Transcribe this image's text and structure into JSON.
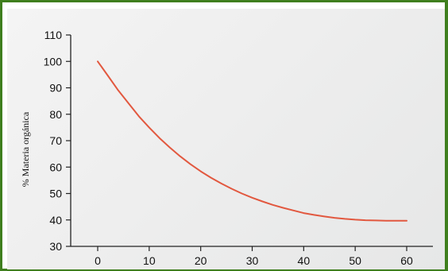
{
  "chart_data": {
    "type": "line",
    "title": "",
    "xlabel": "",
    "ylabel": "% Materia orgánica",
    "xlim": [
      0,
      60
    ],
    "ylim": [
      30,
      110
    ],
    "x_ticks": [
      0,
      10,
      20,
      30,
      40,
      50,
      60
    ],
    "y_ticks": [
      30,
      40,
      50,
      60,
      70,
      80,
      90,
      100,
      110
    ],
    "grid": false,
    "legend": "none",
    "series": [
      {
        "color": "#e2583f",
        "x": [
          0,
          2,
          4,
          6,
          8,
          10,
          12,
          14,
          16,
          18,
          20,
          22,
          24,
          26,
          28,
          30,
          32,
          34,
          36,
          38,
          40,
          42,
          44,
          46,
          48,
          50,
          52,
          54,
          56,
          58,
          60
        ],
        "y": [
          100,
          94.5,
          89.0,
          84.1,
          79.2,
          75.0,
          71.0,
          67.4,
          64.1,
          61.1,
          58.4,
          56.0,
          53.8,
          51.8,
          50.0,
          48.4,
          47.0,
          45.7,
          44.6,
          43.6,
          42.6,
          41.9,
          41.3,
          40.8,
          40.4,
          40.1,
          39.9,
          39.8,
          39.7,
          39.7,
          39.7
        ]
      }
    ]
  },
  "colors": {
    "frame_border": "#3f7f1e",
    "axis": "#222222",
    "series_line": "#e2583f"
  }
}
